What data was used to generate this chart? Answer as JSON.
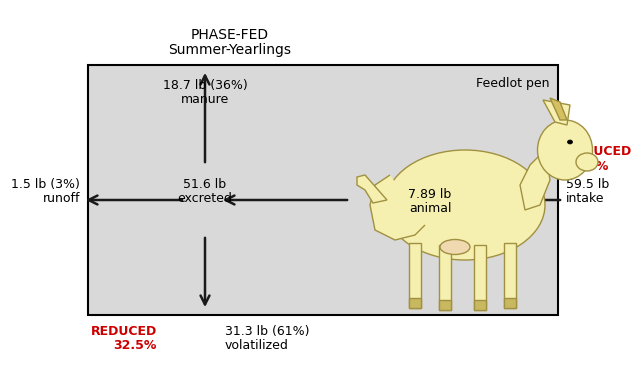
{
  "title_line1": "PHASE-FED",
  "title_line2": "Summer-Yearlings",
  "box_label": "Feedlot pen",
  "box_bg": "#d9d9d9",
  "manure_text1": "18.7 lb (36%)",
  "manure_text2": "manure",
  "runoff_text1": "1.5 lb (3%)",
  "runoff_text2": "runoff",
  "excreted_text1": "51.6 lb",
  "excreted_text2": "excreted",
  "animal_text1": "7.89 lb",
  "animal_text2": "animal",
  "intake_text1": "59.5 lb",
  "intake_text2": "intake",
  "volatilized_text1": "31.3 lb (61%)",
  "volatilized_text2": "volatilized",
  "reduced_right_text1": "REDUCED",
  "reduced_right_text2": "19.0%",
  "reduced_bottom_text1": "REDUCED",
  "reduced_bottom_text2": "32.5%",
  "red_color": "#cc0000",
  "black_color": "#000000",
  "arrow_color": "#1a1a1a",
  "cow_fill": "#f5f0b0",
  "cow_edge": "#a09040"
}
